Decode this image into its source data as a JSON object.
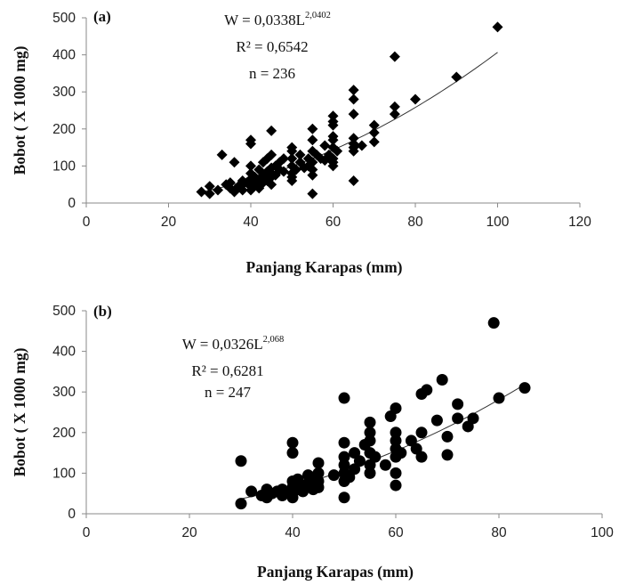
{
  "chart_data": [
    {
      "type": "scatter",
      "panel_label": "(a)",
      "xlabel": "Panjang Karapas (mm)",
      "ylabel": "Bobot ( X 1000 mg)",
      "xlim": [
        0,
        120
      ],
      "ylim": [
        0,
        500
      ],
      "x_ticks": [
        "0",
        "20",
        "40",
        "60",
        "80",
        "100",
        "120"
      ],
      "y_ticks": [
        "0",
        "100",
        "200",
        "300",
        "400",
        "500"
      ],
      "grid": false,
      "marker": "diamond",
      "annotation": {
        "eq_base": "W = 0,0338L",
        "eq_exp": "2,0402",
        "r2": "R² =  0,6542",
        "n": "n = 236"
      },
      "trendline": {
        "a": 0.0338,
        "b": 2.0402,
        "x_range": [
          28,
          100
        ]
      },
      "points": [
        [
          28,
          30
        ],
        [
          30,
          25
        ],
        [
          30,
          45
        ],
        [
          32,
          35
        ],
        [
          33,
          130
        ],
        [
          34,
          50
        ],
        [
          35,
          40
        ],
        [
          35,
          55
        ],
        [
          36,
          30
        ],
        [
          36,
          110
        ],
        [
          37,
          45
        ],
        [
          38,
          50
        ],
        [
          38,
          60
        ],
        [
          38,
          35
        ],
        [
          39,
          55
        ],
        [
          40,
          45
        ],
        [
          40,
          65
        ],
        [
          40,
          80
        ],
        [
          40,
          100
        ],
        [
          40,
          160
        ],
        [
          40,
          170
        ],
        [
          40,
          35
        ],
        [
          41,
          70
        ],
        [
          41,
          50
        ],
        [
          42,
          60
        ],
        [
          42,
          90
        ],
        [
          42,
          40
        ],
        [
          43,
          75
        ],
        [
          43,
          110
        ],
        [
          43,
          55
        ],
        [
          44,
          60
        ],
        [
          44,
          85
        ],
        [
          44,
          120
        ],
        [
          45,
          70
        ],
        [
          45,
          95
        ],
        [
          45,
          130
        ],
        [
          45,
          195
        ],
        [
          45,
          50
        ],
        [
          45,
          80
        ],
        [
          46,
          100
        ],
        [
          46,
          75
        ],
        [
          47,
          110
        ],
        [
          47,
          90
        ],
        [
          48,
          85
        ],
        [
          48,
          120
        ],
        [
          50,
          80
        ],
        [
          50,
          100
        ],
        [
          50,
          120
        ],
        [
          50,
          140
        ],
        [
          50,
          150
        ],
        [
          50,
          70
        ],
        [
          50,
          60
        ],
        [
          51,
          90
        ],
        [
          52,
          130
        ],
        [
          52,
          110
        ],
        [
          53,
          95
        ],
        [
          54,
          100
        ],
        [
          54,
          120
        ],
        [
          55,
          75
        ],
        [
          55,
          110
        ],
        [
          55,
          140
        ],
        [
          55,
          170
        ],
        [
          55,
          200
        ],
        [
          55,
          25
        ],
        [
          55,
          90
        ],
        [
          56,
          130
        ],
        [
          57,
          120
        ],
        [
          58,
          115
        ],
        [
          58,
          155
        ],
        [
          59,
          130
        ],
        [
          60,
          100
        ],
        [
          60,
          120
        ],
        [
          60,
          150
        ],
        [
          60,
          180
        ],
        [
          60,
          210
        ],
        [
          60,
          220
        ],
        [
          60,
          235
        ],
        [
          60,
          170
        ],
        [
          60,
          110
        ],
        [
          61,
          140
        ],
        [
          65,
          60
        ],
        [
          65,
          140
        ],
        [
          65,
          160
        ],
        [
          65,
          175
        ],
        [
          65,
          240
        ],
        [
          65,
          280
        ],
        [
          65,
          305
        ],
        [
          65,
          150
        ],
        [
          67,
          155
        ],
        [
          70,
          165
        ],
        [
          70,
          190
        ],
        [
          70,
          210
        ],
        [
          75,
          240
        ],
        [
          75,
          260
        ],
        [
          75,
          395
        ],
        [
          80,
          280
        ],
        [
          90,
          340
        ],
        [
          100,
          475
        ]
      ]
    },
    {
      "type": "scatter",
      "panel_label": "(b)",
      "xlabel": "Panjang Karapas (mm)",
      "ylabel": "Bobot ( X 1000 mg)",
      "xlim": [
        0,
        100
      ],
      "ylim": [
        0,
        500
      ],
      "x_ticks": [
        "0",
        "20",
        "40",
        "60",
        "80",
        "100"
      ],
      "y_ticks": [
        "0",
        "100",
        "200",
        "300",
        "400",
        "500"
      ],
      "grid": false,
      "marker": "circle",
      "annotation": {
        "eq_base": "W = 0,0326L",
        "eq_exp": "2,068",
        "r2": "R² =  0,6281",
        "n": "n = 247"
      },
      "trendline": {
        "a": 0.0326,
        "b": 2.068,
        "x_range": [
          30,
          85
        ]
      },
      "points": [
        [
          30,
          25
        ],
        [
          30,
          130
        ],
        [
          32,
          55
        ],
        [
          34,
          45
        ],
        [
          35,
          40
        ],
        [
          35,
          60
        ],
        [
          36,
          50
        ],
        [
          37,
          55
        ],
        [
          38,
          45
        ],
        [
          38,
          60
        ],
        [
          40,
          40
        ],
        [
          40,
          50
        ],
        [
          40,
          65
        ],
        [
          40,
          80
        ],
        [
          40,
          150
        ],
        [
          40,
          175
        ],
        [
          41,
          60
        ],
        [
          41,
          85
        ],
        [
          42,
          55
        ],
        [
          42,
          70
        ],
        [
          43,
          75
        ],
        [
          43,
          95
        ],
        [
          44,
          60
        ],
        [
          44,
          90
        ],
        [
          45,
          65
        ],
        [
          45,
          80
        ],
        [
          45,
          100
        ],
        [
          45,
          125
        ],
        [
          48,
          95
        ],
        [
          50,
          40
        ],
        [
          50,
          80
        ],
        [
          50,
          100
        ],
        [
          50,
          120
        ],
        [
          50,
          140
        ],
        [
          50,
          175
        ],
        [
          50,
          285
        ],
        [
          51,
          90
        ],
        [
          52,
          110
        ],
        [
          52,
          150
        ],
        [
          53,
          130
        ],
        [
          54,
          170
        ],
        [
          55,
          100
        ],
        [
          55,
          120
        ],
        [
          55,
          150
        ],
        [
          55,
          180
        ],
        [
          55,
          200
        ],
        [
          55,
          225
        ],
        [
          56,
          140
        ],
        [
          58,
          120
        ],
        [
          59,
          240
        ],
        [
          60,
          70
        ],
        [
          60,
          100
        ],
        [
          60,
          140
        ],
        [
          60,
          160
        ],
        [
          60,
          180
        ],
        [
          60,
          200
        ],
        [
          60,
          260
        ],
        [
          61,
          150
        ],
        [
          63,
          180
        ],
        [
          64,
          160
        ],
        [
          65,
          140
        ],
        [
          65,
          200
        ],
        [
          65,
          295
        ],
        [
          66,
          305
        ],
        [
          68,
          230
        ],
        [
          69,
          330
        ],
        [
          70,
          145
        ],
        [
          70,
          190
        ],
        [
          72,
          235
        ],
        [
          72,
          270
        ],
        [
          74,
          215
        ],
        [
          75,
          235
        ],
        [
          79,
          470
        ],
        [
          80,
          285
        ],
        [
          85,
          310
        ]
      ]
    }
  ]
}
